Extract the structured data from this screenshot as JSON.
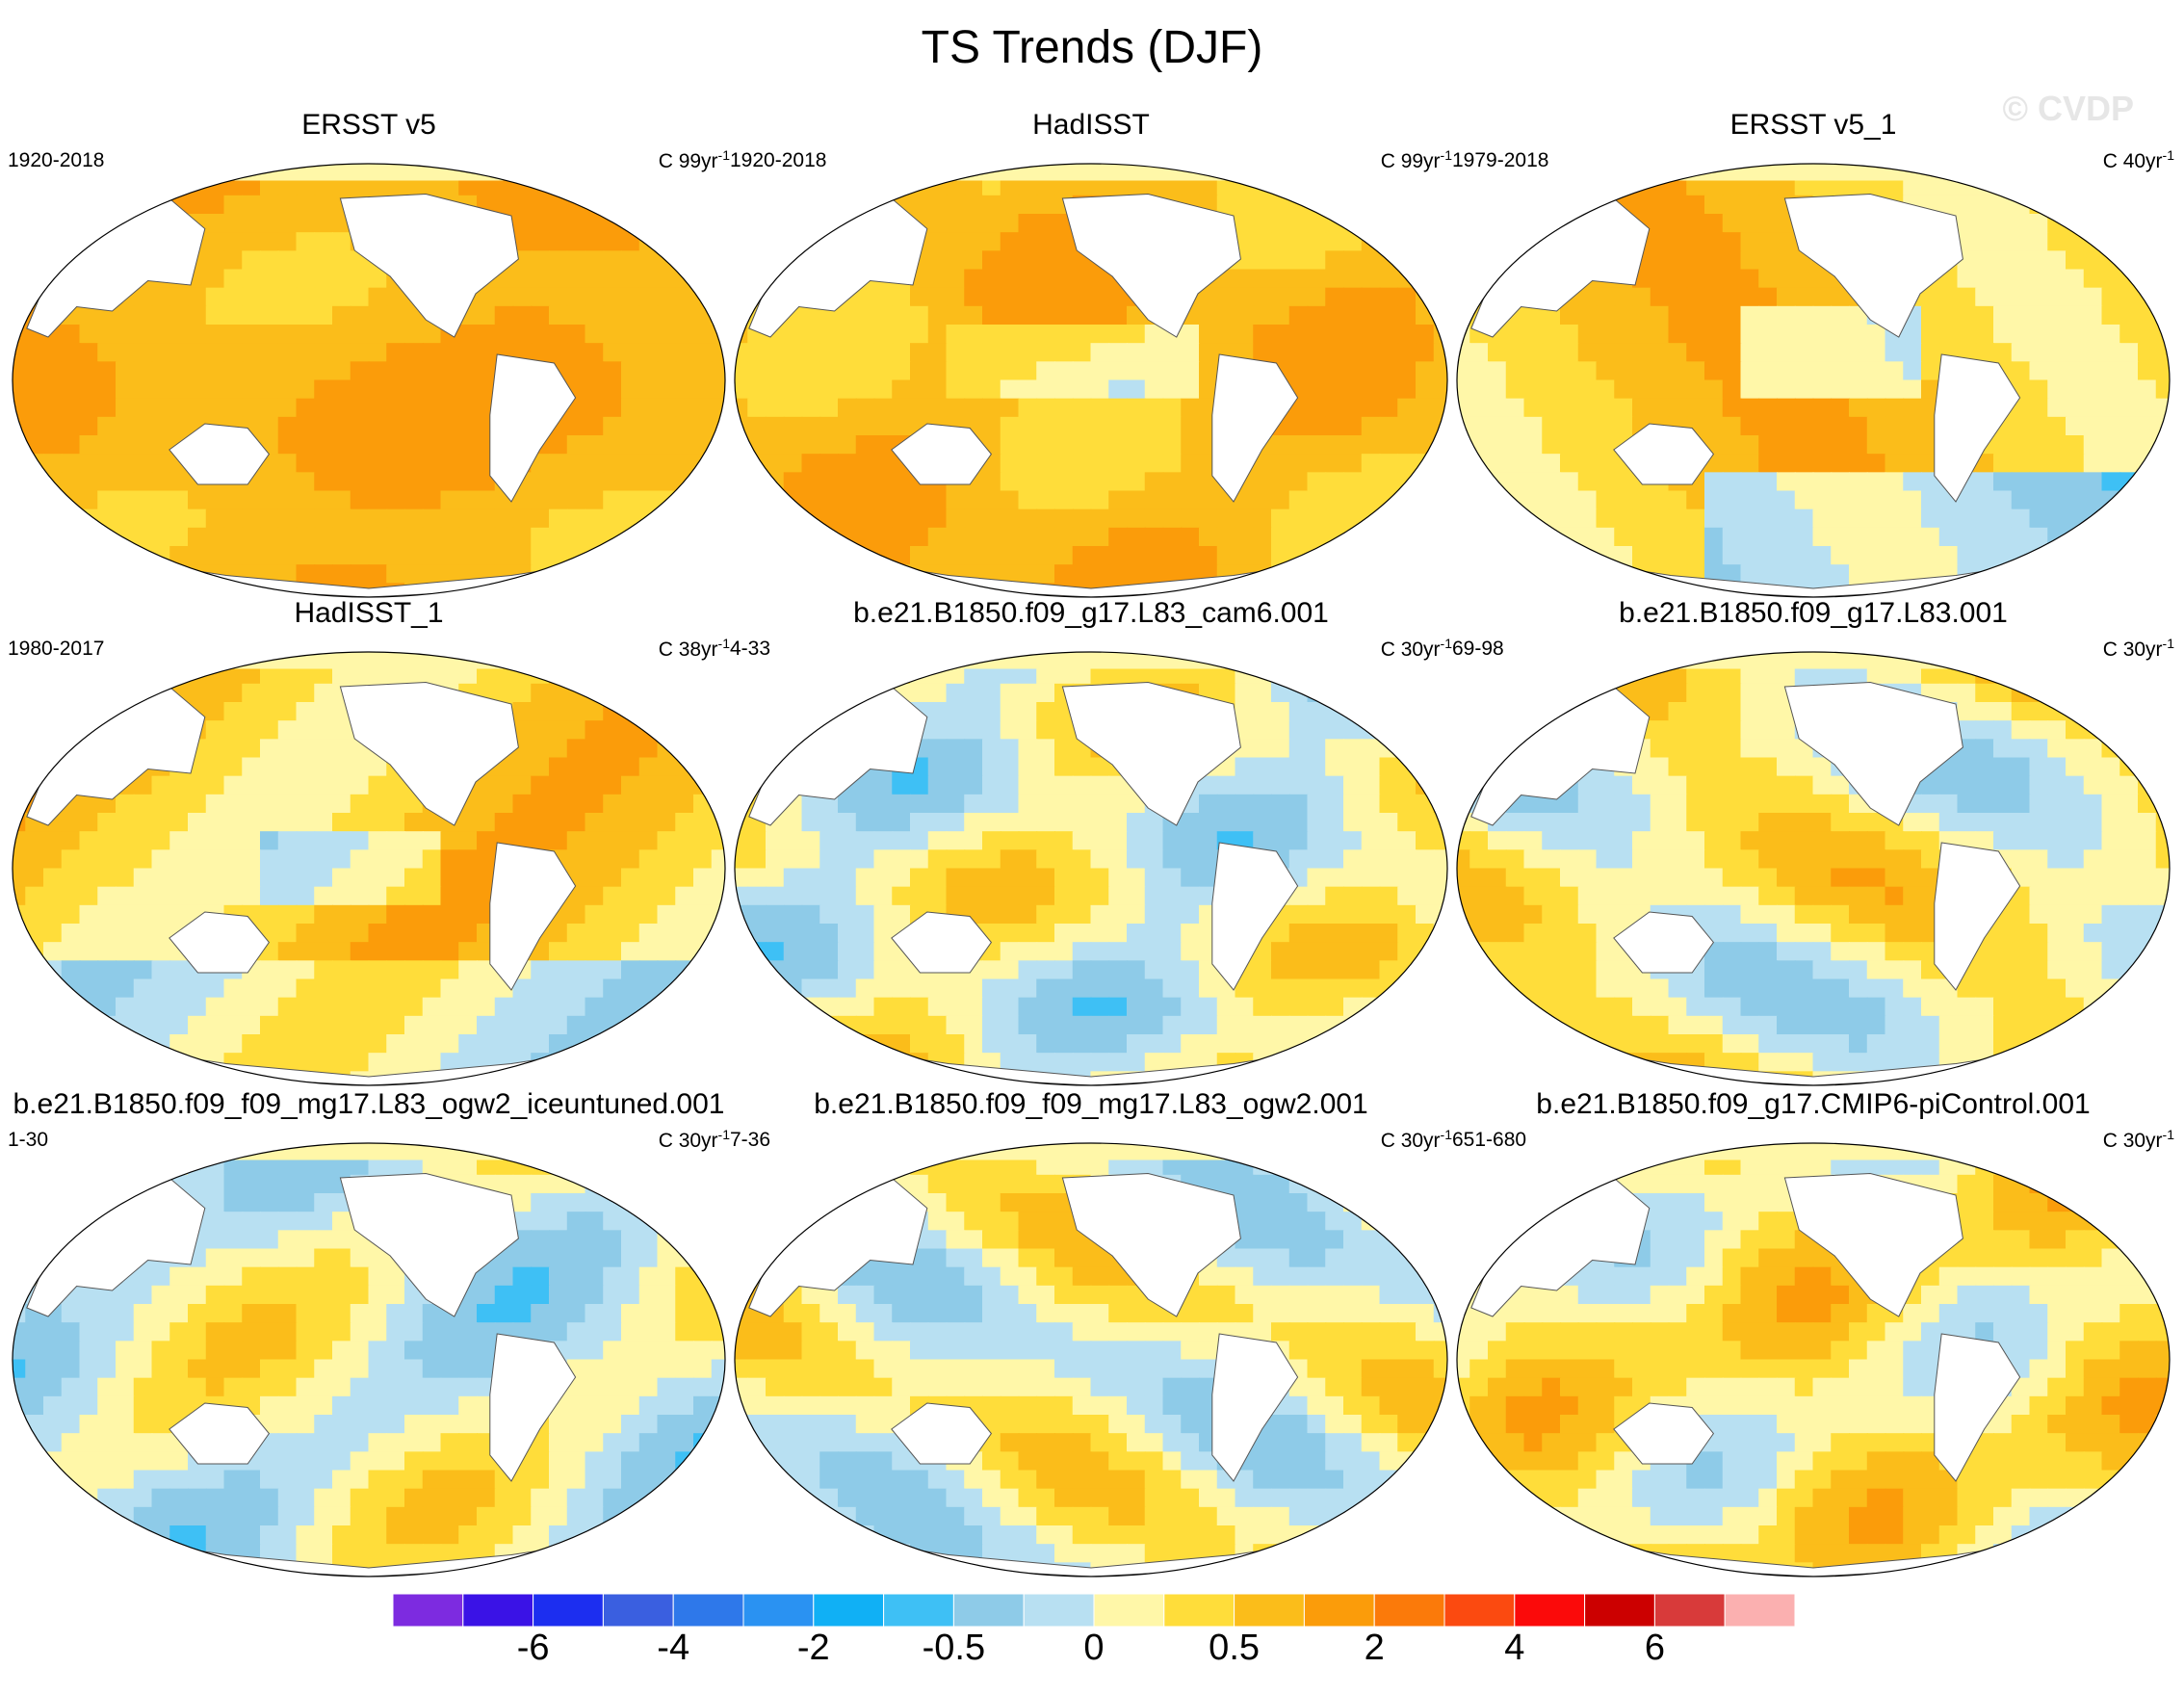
{
  "title": "TS Trends (DJF)",
  "watermark": "© CVDP",
  "chart_data": {
    "type": "heatmap",
    "title": "TS Trends (DJF)",
    "panels": [
      {
        "name": "ERSST v5",
        "range": "1920-2018",
        "units": "C 99yr",
        "exp": "-1",
        "pattern": "warm"
      },
      {
        "name": "HadISST",
        "range": "1920-2018",
        "units": "C 99yr",
        "exp": "-1",
        "pattern": "warm2"
      },
      {
        "name": "ERSST v5_1",
        "range": "1979-2018",
        "units": "C 40yr",
        "exp": "-1",
        "pattern": "recent"
      },
      {
        "name": "HadISST_1",
        "range": "1980-2017",
        "units": "C 38yr",
        "exp": "-1",
        "pattern": "recent2"
      },
      {
        "name": "b.e21.B1850.f09_g17.L83_cam6.001",
        "range": "4-33",
        "units": "C 30yr",
        "exp": "-1",
        "pattern": "cool"
      },
      {
        "name": "b.e21.B1850.f09_g17.L83.001",
        "range": "69-98",
        "units": "C 30yr",
        "exp": "-1",
        "pattern": "mixed"
      },
      {
        "name": "b.e21.B1850.f09_f09_mg17.L83_ogw2_iceuntuned.001",
        "range": "1-30",
        "units": "C 30yr",
        "exp": "-1",
        "pattern": "cool2"
      },
      {
        "name": "b.e21.B1850.f09_f09_mg17.L83_ogw2.001",
        "range": "7-36",
        "units": "C 30yr",
        "exp": "-1",
        "pattern": "cool3"
      },
      {
        "name": "b.e21.B1850.f09_g17.CMIP6-piControl.001",
        "range": "651-680",
        "units": "C 30yr",
        "exp": "-1",
        "pattern": "mixed2"
      }
    ],
    "colorbar": {
      "colors": [
        "#7d2be0",
        "#3a12e6",
        "#1c2ef0",
        "#3a5fe0",
        "#2e78ea",
        "#2a92f2",
        "#10b0f5",
        "#3ec0f5",
        "#8ecbe8",
        "#b8e0f2",
        "#fff7a8",
        "#ffdd3a",
        "#fbbd1a",
        "#fb9c0a",
        "#fb7a0a",
        "#fb4a10",
        "#fb0a0a",
        "#cc0000",
        "#d83a3a",
        "#fbb0b0"
      ],
      "tick_labels": [
        "-6",
        "-4",
        "-2",
        "-0.5",
        "0",
        "0.5",
        "2",
        "4",
        "6"
      ]
    }
  }
}
